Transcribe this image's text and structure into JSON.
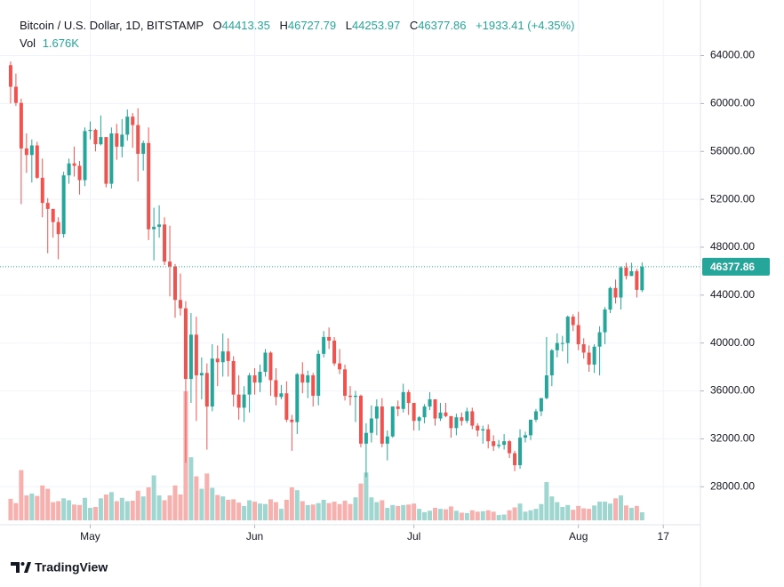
{
  "chart_data": {
    "type": "candlestick",
    "header": {
      "symbol": "Bitcoin / U.S. Dollar, 1D, BITSTAMP",
      "ohlc_labels": [
        "O",
        "H",
        "L",
        "C"
      ],
      "change": "+1933.41",
      "change_pct": "(+4.35%)",
      "volume_label": "Vol",
      "last_volume_label": "1.676K"
    },
    "brand": "TradingView",
    "up_color": "#26a69a",
    "down_color": "#ef5350",
    "volume_up_color": "#9fd6d0",
    "volume_down_color": "#f6b0ae",
    "open": [
      63200,
      61400,
      60050,
      56250,
      55700,
      56500,
      53800,
      51700,
      51200,
      50100,
      49100,
      54000,
      55000,
      54800,
      53600,
      57700,
      57800,
      56600,
      57200,
      53300,
      57500,
      56400,
      57400,
      58900,
      58200,
      55800,
      56700,
      49500,
      49700,
      49900,
      46800,
      46400,
      43600,
      42900,
      37000,
      40700,
      37300,
      37500,
      34700,
      38700,
      38400,
      39300,
      38500,
      35700,
      34600,
      35700,
      37300,
      36700,
      37600,
      39200,
      36900,
      35500,
      35800,
      33600,
      33400,
      37400,
      36700,
      37300,
      35600,
      39100,
      40500,
      40200,
      38300,
      37800,
      35600,
      35500,
      35600,
      31600,
      32500,
      33700,
      34700,
      31600,
      32200,
      34700,
      34500,
      35900,
      35000,
      33500,
      33800,
      34700,
      35300,
      33700,
      34200,
      33900,
      32900,
      33800,
      33500,
      34300,
      33100,
      32700,
      32800,
      31800,
      31400,
      31500,
      31800,
      30800,
      29800,
      32100,
      32300,
      33600,
      34300,
      35400,
      37300,
      39400,
      40000,
      40000,
      42200,
      41500,
      39900,
      39200,
      38200,
      39700,
      40900,
      42800,
      44600,
      43800,
      46300,
      45600,
      46000,
      44413.35
    ],
    "high": [
      63500,
      62500,
      60400,
      57500,
      57000,
      56800,
      55400,
      52100,
      51200,
      50500,
      54300,
      55400,
      56400,
      55200,
      58000,
      58500,
      57900,
      59000,
      57200,
      58000,
      58300,
      58700,
      59500,
      59200,
      59600,
      56900,
      58000,
      51300,
      51500,
      50500,
      49800,
      46600,
      45800,
      43500,
      42500,
      42200,
      38800,
      38300,
      39900,
      39800,
      40800,
      40400,
      38900,
      37300,
      36400,
      37500,
      37900,
      38200,
      39500,
      39300,
      37900,
      36500,
      36800,
      34000,
      37500,
      38400,
      37700,
      37500,
      39400,
      41000,
      41300,
      40500,
      39500,
      38200,
      36400,
      36000,
      35700,
      33300,
      34800,
      35300,
      35400,
      32700,
      34700,
      35200,
      36600,
      36100,
      35000,
      33900,
      34900,
      35900,
      35300,
      35000,
      35000,
      33900,
      34100,
      34200,
      34600,
      34600,
      33300,
      33100,
      33200,
      32300,
      31900,
      32400,
      31900,
      31000,
      32800,
      32600,
      33600,
      34500,
      35400,
      40500,
      39500,
      40800,
      40600,
      42300,
      42400,
      42600,
      40400,
      39800,
      39900,
      41400,
      43000,
      44700,
      45300,
      46400,
      46700,
      46700,
      46200,
      46727.79
    ],
    "low": [
      60000,
      59800,
      51600,
      54200,
      53400,
      53700,
      50500,
      47500,
      48800,
      47000,
      48800,
      53300,
      53900,
      52400,
      53100,
      57000,
      56000,
      56500,
      53000,
      52900,
      55300,
      55500,
      56900,
      56300,
      53500,
      54400,
      48600,
      46900,
      48800,
      46500,
      43900,
      42100,
      42300,
      30000,
      35000,
      33500,
      35300,
      31100,
      34300,
      36400,
      37200,
      37200,
      34700,
      33600,
      33400,
      34200,
      35700,
      35900,
      37200,
      35600,
      34800,
      35300,
      33400,
      31000,
      32400,
      35800,
      35400,
      34700,
      34800,
      38800,
      39500,
      38100,
      37400,
      35200,
      34800,
      33400,
      31300,
      28800,
      31700,
      32300,
      31300,
      30200,
      32100,
      33900,
      34200,
      34000,
      32700,
      32700,
      33300,
      34400,
      33100,
      33500,
      33800,
      32100,
      32300,
      33100,
      33300,
      32800,
      32200,
      31600,
      31200,
      31000,
      31200,
      31100,
      30400,
      29300,
      29500,
      31700,
      31900,
      33400,
      33900,
      35300,
      36400,
      38800,
      39300,
      38300,
      41000,
      39400,
      38700,
      37600,
      37500,
      37300,
      39900,
      42500,
      43300,
      42800,
      45300,
      45600,
      43800,
      44253.97
    ],
    "close": [
      61400,
      60050,
      56250,
      55700,
      56500,
      53800,
      51700,
      51200,
      50100,
      49100,
      54000,
      55000,
      54800,
      53600,
      57700,
      57800,
      56600,
      57200,
      53300,
      57500,
      56400,
      57400,
      58900,
      58200,
      55800,
      56700,
      49500,
      49700,
      49900,
      46800,
      46400,
      43600,
      42900,
      37000,
      40700,
      37300,
      37500,
      34700,
      38700,
      38400,
      39300,
      38500,
      35700,
      34600,
      35700,
      37300,
      36700,
      37600,
      39200,
      36900,
      35500,
      35800,
      33600,
      33400,
      37400,
      36700,
      37300,
      35600,
      39100,
      40500,
      40200,
      38300,
      37800,
      35600,
      35500,
      35600,
      31600,
      32500,
      33700,
      34700,
      31600,
      32200,
      34700,
      34500,
      35900,
      35000,
      33500,
      33800,
      34700,
      35300,
      33700,
      34200,
      33900,
      32900,
      33800,
      33500,
      34300,
      33100,
      32700,
      32800,
      31800,
      31400,
      31500,
      31800,
      30800,
      29800,
      32100,
      32300,
      33600,
      34300,
      35400,
      37300,
      39400,
      40000,
      40000,
      42200,
      41500,
      39900,
      39200,
      38200,
      39700,
      40900,
      42800,
      44600,
      43800,
      46300,
      45600,
      46000,
      44444.45,
      46377.86
    ],
    "volume": [
      4500,
      3600,
      10500,
      5200,
      5600,
      5100,
      7300,
      6600,
      3800,
      4000,
      4600,
      4200,
      3300,
      3200,
      4700,
      2600,
      2800,
      4600,
      5400,
      5900,
      4000,
      4700,
      4000,
      4100,
      6200,
      5000,
      6900,
      9400,
      5200,
      4200,
      5200,
      7300,
      5400,
      27000,
      13200,
      9200,
      6600,
      9800,
      6800,
      5300,
      5000,
      4300,
      4400,
      3700,
      3000,
      4200,
      3900,
      3500,
      3400,
      4400,
      3800,
      2400,
      4300,
      6900,
      6300,
      4000,
      3200,
      3300,
      3600,
      4300,
      3600,
      3900,
      3400,
      4100,
      3400,
      4800,
      7700,
      10000,
      4800,
      3800,
      4200,
      2600,
      3200,
      3000,
      3200,
      3300,
      3500,
      2400,
      1700,
      2000,
      2600,
      2400,
      2300,
      2900,
      2000,
      1600,
      1500,
      2100,
      1800,
      1900,
      2100,
      1800,
      1100,
      1200,
      2100,
      2700,
      3500,
      1800,
      2100,
      2400,
      3400,
      8000,
      5000,
      3800,
      2800,
      3200,
      2200,
      3000,
      2500,
      2400,
      3100,
      3900,
      3900,
      3500,
      4600,
      5200,
      3100,
      2600,
      3000,
      1676
    ],
    "xlim": [
      -2,
      130
    ],
    "xticks": [
      {
        "value": 15,
        "label": "May"
      },
      {
        "value": 46,
        "label": "Jun"
      },
      {
        "value": 76,
        "label": "Jul"
      },
      {
        "value": 107,
        "label": "Aug"
      },
      {
        "value": 123,
        "label": "17"
      }
    ],
    "ylim": [
      25200,
      67900
    ],
    "yticks": [
      {
        "value": 28000,
        "label": "28000.00"
      },
      {
        "value": 32000,
        "label": "32000.00"
      },
      {
        "value": 36000,
        "label": "36000.00"
      },
      {
        "value": 40000,
        "label": "40000.00"
      },
      {
        "value": 44000,
        "label": "44000.00"
      },
      {
        "value": 48000,
        "label": "48000.00"
      },
      {
        "value": 52000,
        "label": "52000.00"
      },
      {
        "value": 56000,
        "label": "56000.00"
      },
      {
        "value": 60000,
        "label": "60000.00"
      },
      {
        "value": 64000,
        "label": "64000.00"
      }
    ],
    "grid": true
  }
}
